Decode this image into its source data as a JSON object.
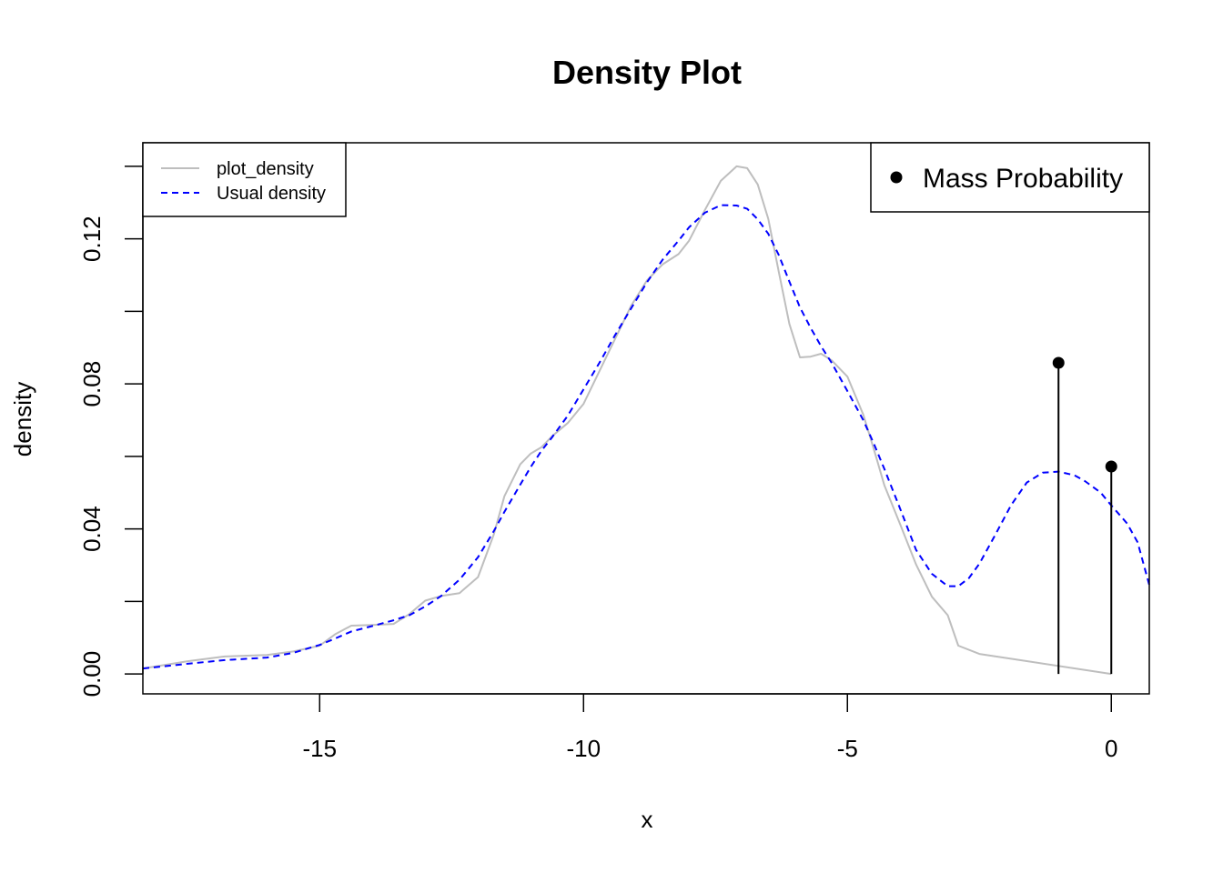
{
  "chart_data": {
    "type": "line",
    "title": "Density Plot",
    "xlabel": "x",
    "ylabel": "density",
    "xlim": [
      -18.35,
      0.72
    ],
    "ylim": [
      -0.0055,
      0.1465
    ],
    "x_ticks": [
      -15,
      -10,
      -5,
      0
    ],
    "x_tick_labels": [
      "-15",
      "-10",
      "-5",
      "0"
    ],
    "y_ticks": [
      0,
      0.02,
      0.04,
      0.06,
      0.08,
      0.1,
      0.12,
      0.14
    ],
    "y_tick_labels": [
      "0.00",
      "",
      "0.04",
      "",
      "0.08",
      "",
      "0.12",
      ""
    ],
    "grid": false,
    "series": [
      {
        "name": "plot_density",
        "color": "#bebebe",
        "style": "solid",
        "x": [
          -18.35,
          -17.5,
          -16.8,
          -16.0,
          -15.5,
          -15.0,
          -14.7,
          -14.4,
          -14.0,
          -13.6,
          -13.3,
          -13.0,
          -12.7,
          -12.35,
          -12.0,
          -11.7,
          -11.5,
          -11.2,
          -11.0,
          -10.8,
          -10.6,
          -10.3,
          -10.0,
          -9.7,
          -9.4,
          -9.1,
          -8.8,
          -8.5,
          -8.2,
          -8.0,
          -7.7,
          -7.4,
          -7.1,
          -6.9,
          -6.7,
          -6.5,
          -6.3,
          -6.1,
          -5.9,
          -5.7,
          -5.5,
          -5.3,
          -5.0,
          -4.7,
          -4.5,
          -4.3,
          -4.0,
          -3.7,
          -3.4,
          -3.1,
          -2.9,
          -2.5,
          0.0
        ],
        "y": [
          0.0015,
          0.0035,
          0.0048,
          0.0052,
          0.0062,
          0.0078,
          0.011,
          0.0133,
          0.0135,
          0.0138,
          0.0165,
          0.0202,
          0.0215,
          0.0223,
          0.0267,
          0.0385,
          0.049,
          0.0578,
          0.0608,
          0.0625,
          0.0655,
          0.0692,
          0.0745,
          0.0835,
          0.0925,
          0.1015,
          0.1085,
          0.113,
          0.1158,
          0.1195,
          0.128,
          0.136,
          0.14,
          0.1395,
          0.135,
          0.1255,
          0.1108,
          0.0965,
          0.0873,
          0.0875,
          0.0883,
          0.0865,
          0.082,
          0.0715,
          0.062,
          0.052,
          0.0412,
          0.0302,
          0.0213,
          0.0162,
          0.0078,
          0.0055,
          0.0
        ]
      },
      {
        "name": "Usual density",
        "color": "#0000ff",
        "style": "dashed",
        "x": [
          -18.35,
          -17.5,
          -16.8,
          -16.0,
          -15.5,
          -15.0,
          -14.7,
          -14.4,
          -14.0,
          -13.6,
          -13.3,
          -13.0,
          -12.7,
          -12.35,
          -12.0,
          -11.7,
          -11.5,
          -11.2,
          -11.0,
          -10.8,
          -10.6,
          -10.3,
          -10.0,
          -9.7,
          -9.4,
          -9.1,
          -8.8,
          -8.5,
          -8.2,
          -8.0,
          -7.7,
          -7.4,
          -7.1,
          -6.9,
          -6.7,
          -6.5,
          -6.3,
          -6.1,
          -5.9,
          -5.7,
          -5.5,
          -5.3,
          -5.0,
          -4.7,
          -4.5,
          -4.3,
          -4.0,
          -3.7,
          -3.4,
          -3.1,
          -2.9,
          -2.7,
          -2.5,
          -2.2,
          -1.9,
          -1.6,
          -1.3,
          -1.0,
          -0.7,
          -0.5,
          -0.2,
          0.0,
          0.3,
          0.5,
          0.72
        ],
        "y": [
          0.0015,
          0.0028,
          0.0038,
          0.0045,
          0.0058,
          0.008,
          0.0098,
          0.0117,
          0.0132,
          0.0148,
          0.0162,
          0.0186,
          0.0215,
          0.026,
          0.0322,
          0.0394,
          0.0447,
          0.0522,
          0.0571,
          0.0615,
          0.0652,
          0.0712,
          0.0785,
          0.0858,
          0.0935,
          0.1008,
          0.108,
          0.1143,
          0.1195,
          0.1232,
          0.1272,
          0.1293,
          0.1292,
          0.1283,
          0.1254,
          0.1214,
          0.1155,
          0.1082,
          0.1011,
          0.0955,
          0.0904,
          0.0858,
          0.078,
          0.07,
          0.0635,
          0.0565,
          0.0455,
          0.0342,
          0.0276,
          0.0242,
          0.0242,
          0.0264,
          0.0304,
          0.0383,
          0.0465,
          0.0528,
          0.0555,
          0.0558,
          0.0548,
          0.0532,
          0.05,
          0.0465,
          0.0415,
          0.0363,
          0.0245
        ]
      },
      {
        "name": "Mass Probability",
        "color": "#000000",
        "style": "stem",
        "x": [
          -1.0,
          0.0
        ],
        "y": [
          0.0858,
          0.0572
        ]
      }
    ],
    "legends": [
      {
        "placement": "top-left",
        "entries": [
          {
            "label": "plot_density",
            "color": "#bebebe",
            "style": "solid"
          },
          {
            "label": "Usual density",
            "color": "#0000ff",
            "style": "dashed"
          }
        ]
      },
      {
        "placement": "top-right",
        "entries": [
          {
            "label": "Mass Probability",
            "color": "#000000",
            "style": "point"
          }
        ]
      }
    ]
  }
}
